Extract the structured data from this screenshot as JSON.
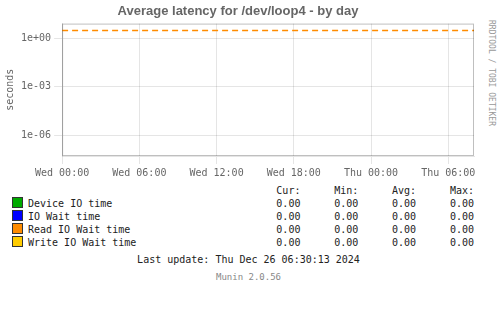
{
  "chart_data": {
    "type": "line",
    "title": "Average latency for /dev/loop4 - by day",
    "y_label": "seconds",
    "log": "y",
    "grid": true,
    "xlim": [
      0,
      32
    ],
    "xticks": [
      {
        "value": 0,
        "label": "Wed 00:00"
      },
      {
        "value": 6,
        "label": "Wed 06:00"
      },
      {
        "value": 12,
        "label": "Wed 12:00"
      },
      {
        "value": 18,
        "label": "Wed 18:00"
      },
      {
        "value": 24,
        "label": "Thu 00:00"
      },
      {
        "value": 30,
        "label": "Thu 06:00"
      }
    ],
    "ylim": [
      5.011872336272722e-08,
      7.943282347242815
    ],
    "yticks": [
      {
        "value": 1e-06,
        "label": "1e-06"
      },
      {
        "value": 0.001,
        "label": "1e-03"
      },
      {
        "value": 1,
        "label": "1e+00"
      }
    ],
    "hline": {
      "y": 3.0,
      "color": "#ff8c00",
      "line_style": "dashed"
    },
    "legend_table": {
      "headers": [
        "Cur:",
        "Min:",
        "Avg:",
        "Max:"
      ],
      "rows": [
        {
          "name": "Device IO time",
          "color": "#00aa00",
          "values": [
            0,
            0,
            0,
            0
          ],
          "value_labels": [
            "0.00",
            "0.00",
            "0.00",
            "0.00"
          ]
        },
        {
          "name": "IO Wait time",
          "color": "#0000ff",
          "values": [
            0,
            0,
            0,
            0
          ],
          "value_labels": [
            "0.00",
            "0.00",
            "0.00",
            "0.00"
          ]
        },
        {
          "name": "Read IO Wait time",
          "color": "#ff8c00",
          "values": [
            0,
            0,
            0,
            0
          ],
          "value_labels": [
            "0.00",
            "0.00",
            "0.00",
            "0.00"
          ]
        },
        {
          "name": "Write IO Wait time",
          "color": "#ffcc00",
          "values": [
            0,
            0,
            0,
            0
          ],
          "value_labels": [
            "0.00",
            "0.00",
            "0.00",
            "0.00"
          ]
        }
      ]
    },
    "annotations": [
      "RRDTOOL / TOBI OETIKER",
      "Last update: Thu Dec 26 06:30:13 2024",
      "Munin 2.0.56"
    ]
  }
}
